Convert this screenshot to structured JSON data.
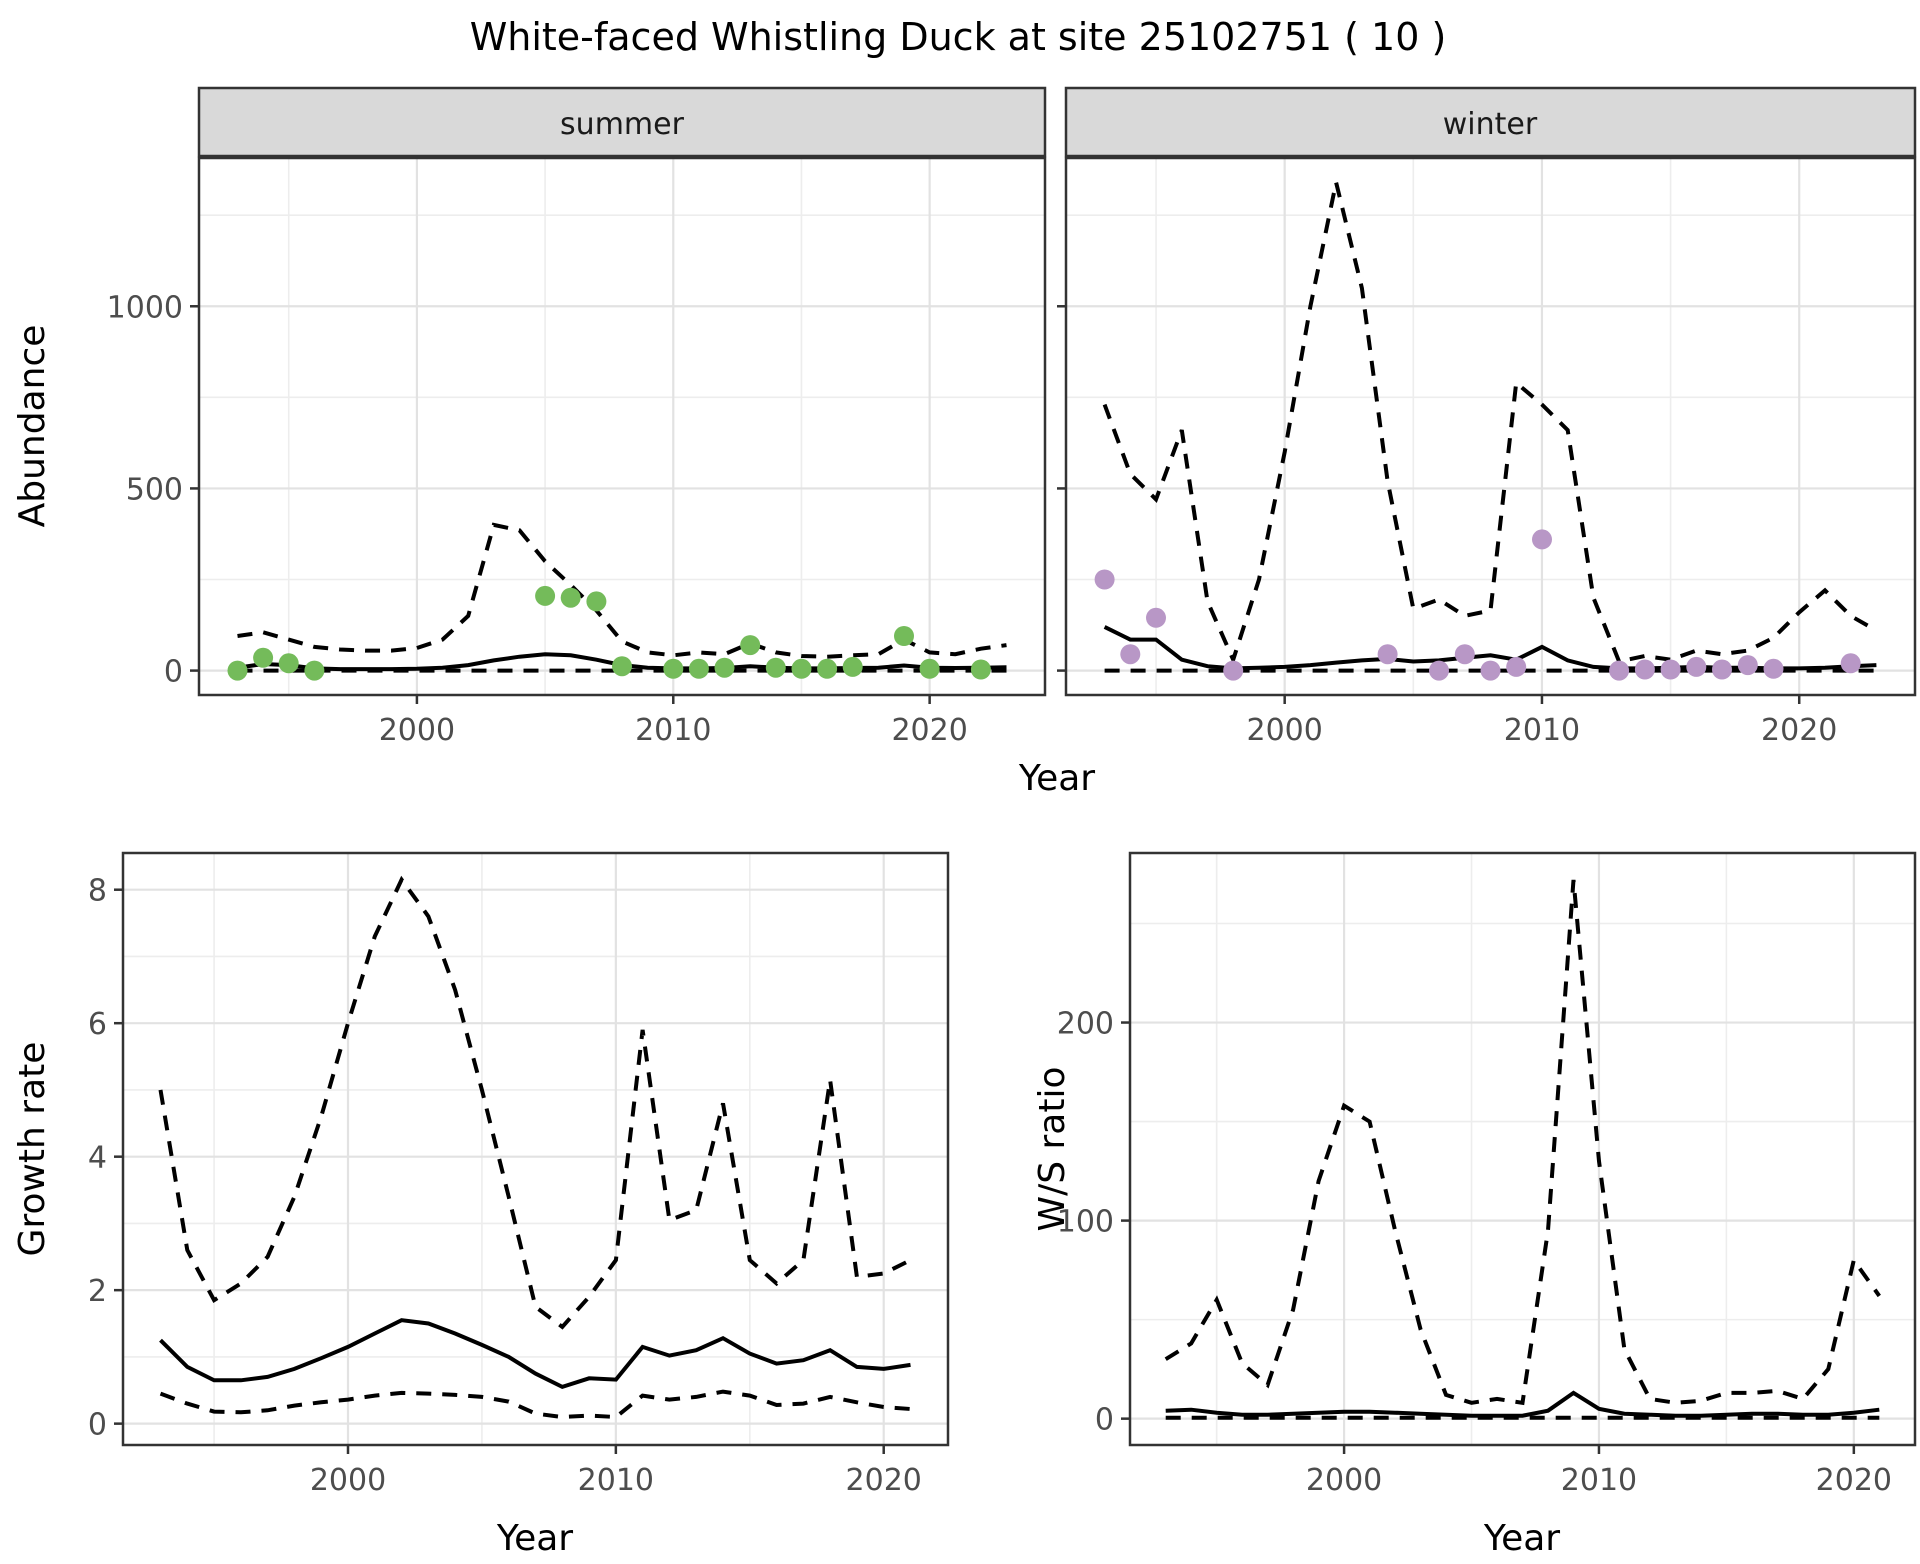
{
  "title": "White-faced Whistling Duck at site 25102751 ( 10 )",
  "labels": {
    "year": "Year",
    "abundance": "Abundance",
    "growth_rate": "Growth rate",
    "ws_ratio": "W/S ratio"
  },
  "colors": {
    "summer_point": "#74BB5A",
    "winter_point": "#B897C6",
    "line": "#000000",
    "strip_bg": "#D9D9D9",
    "panel_border": "#333333",
    "grid_major": "#E2E2E2",
    "grid_minor": "#EDEDED",
    "tick_mark": "#333333",
    "tick_text": "#4d4d4d"
  },
  "chart_data": [
    {
      "id": "abundance_summer",
      "type": "line",
      "facet": "summer",
      "xlabel": "Year",
      "ylabel": "Abundance",
      "legend": "none",
      "grid": true,
      "x": [
        1993,
        1994,
        1995,
        1996,
        1997,
        1998,
        1999,
        2000,
        2001,
        2002,
        2003,
        2004,
        2005,
        2006,
        2007,
        2008,
        2009,
        2010,
        2011,
        2012,
        2013,
        2014,
        2015,
        2016,
        2017,
        2018,
        2019,
        2020,
        2021,
        2022,
        2023
      ],
      "series": [
        {
          "name": "fit",
          "style": "solid",
          "values": [
            8,
            18,
            15,
            6,
            4,
            4,
            4,
            5,
            8,
            15,
            28,
            38,
            45,
            42,
            30,
            15,
            8,
            6,
            6,
            7,
            12,
            8,
            6,
            6,
            7,
            8,
            14,
            8,
            7,
            8,
            9
          ]
        },
        {
          "name": "upper_ci",
          "style": "dashed",
          "values": [
            95,
            105,
            85,
            65,
            58,
            55,
            55,
            62,
            85,
            150,
            400,
            385,
            300,
            235,
            165,
            80,
            50,
            42,
            50,
            45,
            75,
            50,
            40,
            38,
            42,
            45,
            85,
            50,
            45,
            60,
            70
          ]
        },
        {
          "name": "lower_ci",
          "style": "dashed",
          "values": [
            0,
            0,
            0,
            0,
            0,
            0,
            0,
            0,
            0,
            0,
            0,
            0,
            0,
            0,
            0,
            0,
            0,
            0,
            0,
            0,
            0,
            0,
            0,
            0,
            0,
            0,
            0,
            0,
            0,
            0,
            0
          ]
        }
      ],
      "points": {
        "name": "observed-counts",
        "color": "#74BB5A",
        "data": [
          [
            1993,
            0
          ],
          [
            1994,
            35
          ],
          [
            1995,
            20
          ],
          [
            1996,
            0
          ],
          [
            2005,
            205
          ],
          [
            2006,
            200
          ],
          [
            2007,
            190
          ],
          [
            2008,
            12
          ],
          [
            2010,
            5
          ],
          [
            2011,
            5
          ],
          [
            2012,
            8
          ],
          [
            2013,
            70
          ],
          [
            2014,
            8
          ],
          [
            2015,
            5
          ],
          [
            2016,
            5
          ],
          [
            2017,
            10
          ],
          [
            2019,
            95
          ],
          [
            2020,
            5
          ],
          [
            2022,
            3
          ]
        ]
      },
      "xlim": [
        1991.5,
        2024.5
      ],
      "ylim": [
        -67,
        1407
      ],
      "xticks": [
        2000,
        2010,
        2020
      ],
      "xminor": [
        1995,
        2005,
        2015
      ],
      "yticks": [
        0,
        500,
        1000
      ],
      "yminor": [
        250,
        750,
        1250
      ]
    },
    {
      "id": "abundance_winter",
      "type": "line",
      "facet": "winter",
      "xlabel": "Year",
      "ylabel": "Abundance",
      "legend": "none",
      "grid": true,
      "x": [
        1993,
        1994,
        1995,
        1996,
        1997,
        1998,
        1999,
        2000,
        2001,
        2002,
        2003,
        2004,
        2005,
        2006,
        2007,
        2008,
        2009,
        2010,
        2011,
        2012,
        2013,
        2014,
        2015,
        2016,
        2017,
        2018,
        2019,
        2020,
        2021,
        2022,
        2023
      ],
      "series": [
        {
          "name": "fit",
          "style": "solid",
          "values": [
            120,
            85,
            85,
            30,
            12,
            6,
            8,
            10,
            15,
            22,
            28,
            32,
            25,
            28,
            35,
            42,
            30,
            65,
            28,
            10,
            6,
            6,
            8,
            10,
            8,
            8,
            6,
            6,
            8,
            12,
            15
          ]
        },
        {
          "name": "upper_ci",
          "style": "dashed",
          "values": [
            730,
            540,
            470,
            660,
            190,
            30,
            250,
            600,
            1000,
            1340,
            1050,
            520,
            170,
            195,
            150,
            165,
            790,
            730,
            660,
            200,
            25,
            40,
            30,
            55,
            45,
            55,
            90,
            160,
            220,
            150,
            110
          ]
        },
        {
          "name": "lower_ci",
          "style": "dashed",
          "values": [
            0,
            0,
            0,
            0,
            0,
            0,
            0,
            0,
            0,
            0,
            0,
            0,
            0,
            0,
            0,
            0,
            0,
            0,
            0,
            0,
            0,
            0,
            0,
            0,
            0,
            0,
            0,
            0,
            0,
            0,
            0
          ]
        }
      ],
      "points": {
        "name": "observed-counts",
        "color": "#B897C6",
        "data": [
          [
            1993,
            250
          ],
          [
            1994,
            45
          ],
          [
            1995,
            145
          ],
          [
            1998,
            0
          ],
          [
            2004,
            45
          ],
          [
            2006,
            0
          ],
          [
            2007,
            45
          ],
          [
            2008,
            0
          ],
          [
            2009,
            10
          ],
          [
            2010,
            360
          ],
          [
            2013,
            0
          ],
          [
            2014,
            3
          ],
          [
            2015,
            3
          ],
          [
            2016,
            10
          ],
          [
            2017,
            3
          ],
          [
            2018,
            15
          ],
          [
            2019,
            5
          ],
          [
            2022,
            20
          ]
        ]
      },
      "xlim": [
        1991.5,
        2024.5
      ],
      "ylim": [
        -67,
        1407
      ],
      "xticks": [
        2000,
        2010,
        2020
      ],
      "xminor": [
        1995,
        2005,
        2015
      ],
      "yticks": [
        0,
        500,
        1000
      ],
      "yminor": [
        250,
        750,
        1250
      ]
    },
    {
      "id": "growth_rate",
      "type": "line",
      "facet": null,
      "xlabel": "Year",
      "ylabel": "Growth rate",
      "legend": "none",
      "grid": true,
      "x": [
        1993,
        1994,
        1995,
        1996,
        1997,
        1998,
        1999,
        2000,
        2001,
        2002,
        2003,
        2004,
        2005,
        2006,
        2007,
        2008,
        2009,
        2010,
        2011,
        2012,
        2013,
        2014,
        2015,
        2016,
        2017,
        2018,
        2019,
        2020,
        2021
      ],
      "series": [
        {
          "name": "fit",
          "style": "solid",
          "values": [
            1.25,
            0.85,
            0.65,
            0.65,
            0.7,
            0.82,
            0.98,
            1.15,
            1.35,
            1.55,
            1.5,
            1.35,
            1.18,
            1.0,
            0.75,
            0.55,
            0.68,
            0.66,
            1.15,
            1.02,
            1.1,
            1.28,
            1.05,
            0.9,
            0.95,
            1.1,
            0.85,
            0.82,
            0.88
          ]
        },
        {
          "name": "upper_ci",
          "style": "dashed",
          "values": [
            5.0,
            2.6,
            1.85,
            2.1,
            2.5,
            3.4,
            4.6,
            6.0,
            7.3,
            8.15,
            7.6,
            6.5,
            5.0,
            3.4,
            1.75,
            1.45,
            1.9,
            2.45,
            5.9,
            3.05,
            3.2,
            4.8,
            2.45,
            2.1,
            2.45,
            5.15,
            2.2,
            2.25,
            2.45
          ]
        },
        {
          "name": "lower_ci",
          "style": "dashed",
          "values": [
            0.45,
            0.3,
            0.18,
            0.17,
            0.2,
            0.27,
            0.32,
            0.36,
            0.42,
            0.46,
            0.45,
            0.43,
            0.4,
            0.33,
            0.15,
            0.1,
            0.12,
            0.1,
            0.42,
            0.36,
            0.4,
            0.48,
            0.42,
            0.28,
            0.3,
            0.4,
            0.32,
            0.25,
            0.22
          ]
        }
      ],
      "points": null,
      "xlim": [
        1991.6,
        2022.4
      ],
      "ylim": [
        -0.32,
        8.55
      ],
      "xticks": [
        2000,
        2010,
        2020
      ],
      "xminor": [
        1995,
        2005,
        2015
      ],
      "yticks": [
        0,
        2,
        4,
        6,
        8
      ],
      "yminor": [
        1,
        3,
        5,
        7
      ]
    },
    {
      "id": "ws_ratio",
      "type": "line",
      "facet": null,
      "xlabel": "Year",
      "ylabel": "W/S ratio",
      "legend": "none",
      "grid": true,
      "x": [
        1993,
        1994,
        1995,
        1996,
        1997,
        1998,
        1999,
        2000,
        2001,
        2002,
        2003,
        2004,
        2005,
        2006,
        2007,
        2008,
        2009,
        2010,
        2011,
        2012,
        2013,
        2014,
        2015,
        2016,
        2017,
        2018,
        2019,
        2020,
        2021
      ],
      "series": [
        {
          "name": "fit",
          "style": "solid",
          "values": [
            4,
            4.5,
            3,
            2,
            2,
            2.5,
            3,
            3.5,
            3.5,
            3,
            2.5,
            2,
            1.5,
            1.5,
            1.5,
            4,
            13,
            5,
            2.5,
            2,
            1.5,
            1.5,
            2,
            2.5,
            2.5,
            2,
            2,
            3,
            4.5
          ]
        },
        {
          "name": "upper_ci",
          "style": "dashed",
          "values": [
            30,
            38,
            60,
            28,
            17,
            55,
            120,
            158,
            150,
            95,
            45,
            12,
            8,
            10,
            8,
            95,
            272,
            130,
            35,
            10,
            8,
            9,
            13,
            13,
            14,
            10,
            25,
            80,
            62
          ]
        },
        {
          "name": "lower_ci",
          "style": "dashed",
          "values": [
            0.5,
            0.5,
            0.5,
            0.5,
            0.5,
            0.5,
            0.5,
            0.5,
            0.5,
            0.5,
            0.5,
            0.5,
            0.5,
            0.5,
            0.5,
            0.5,
            0.5,
            0.5,
            0.5,
            0.5,
            0.5,
            0.5,
            0.5,
            0.5,
            0.5,
            0.5,
            0.5,
            0.5,
            0.5
          ]
        }
      ],
      "points": null,
      "xlim": [
        1991.6,
        2022.4
      ],
      "ylim": [
        -13.3,
        285.6
      ],
      "xticks": [
        2000,
        2010,
        2020
      ],
      "xminor": [
        1995,
        2005,
        2015
      ],
      "yticks": [
        0,
        100,
        200
      ],
      "yminor": [
        50,
        150,
        250
      ]
    }
  ]
}
